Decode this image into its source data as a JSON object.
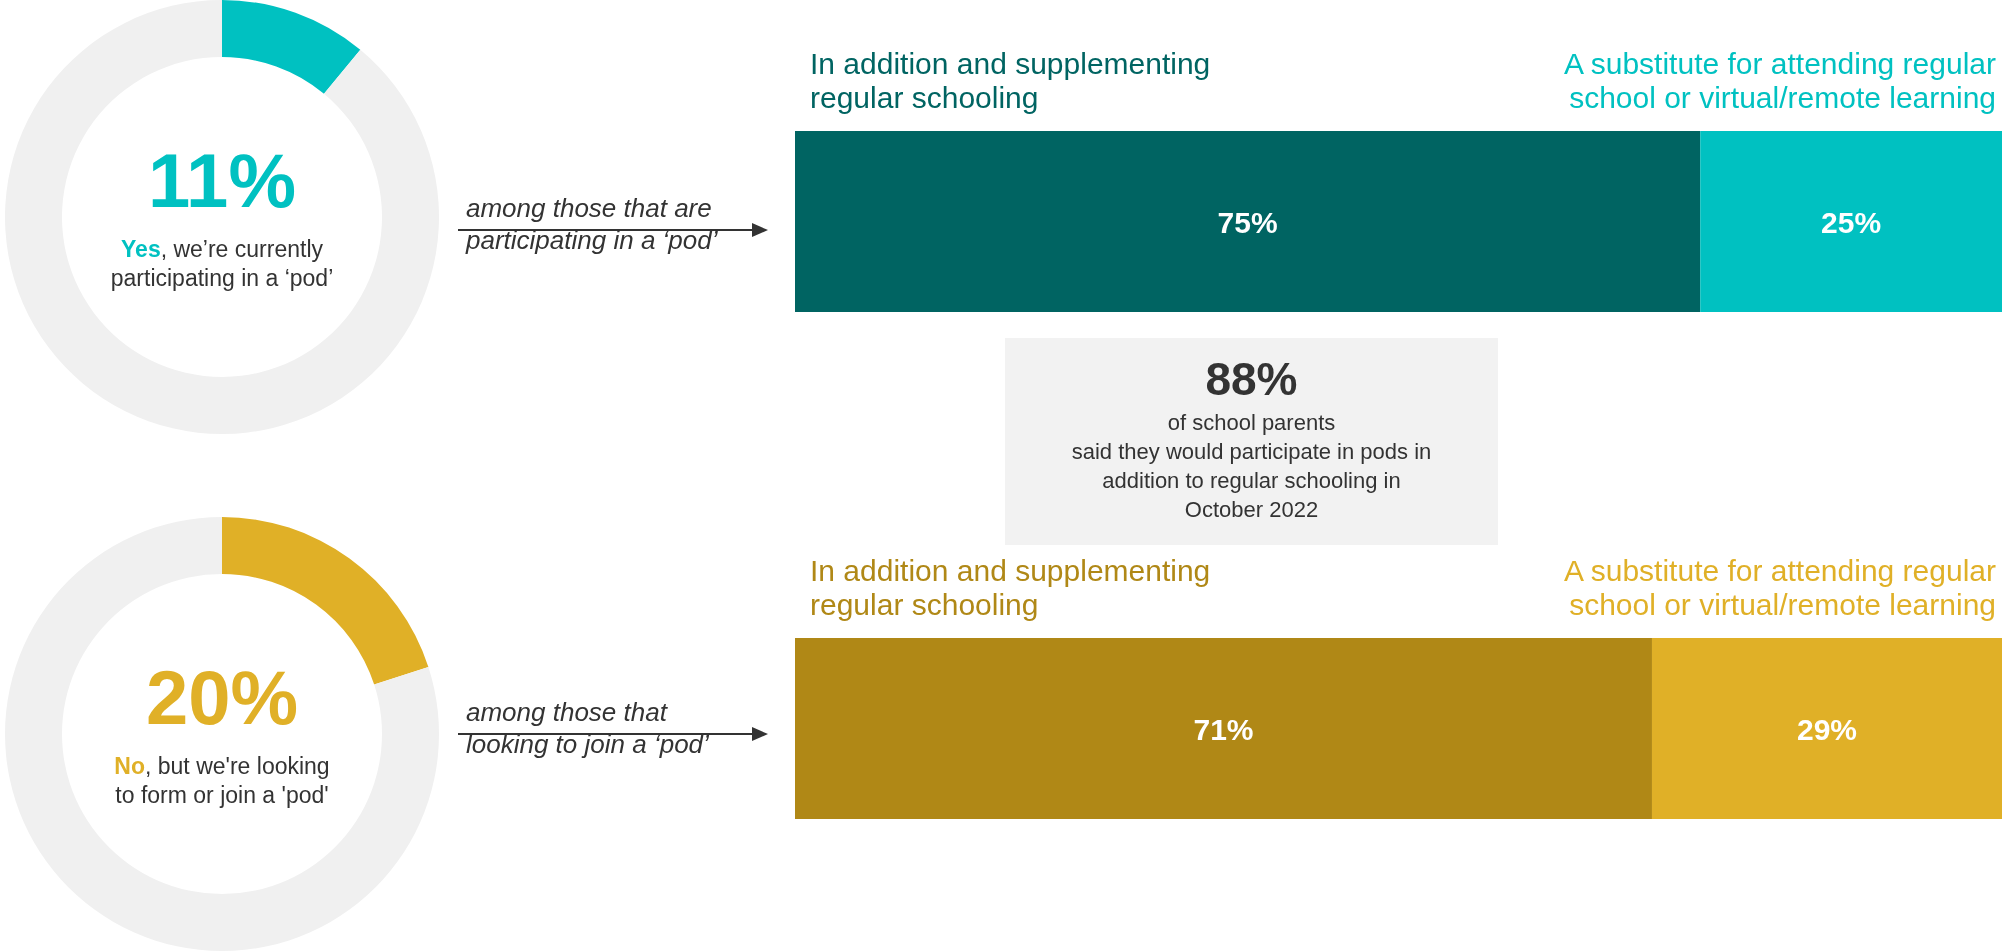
{
  "chart_data": [
    {
      "type": "donut",
      "categories": [
        "Yes, we’re currently\nparticipating in a ‘pod’",
        null
      ],
      "values": [
        11,
        89
      ],
      "colors": [
        "#00c1c1",
        "#f0f0f0"
      ],
      "value_labels": [
        "11%",
        null
      ]
    },
    {
      "type": "bar",
      "orientation": "horizontal",
      "stacked": true,
      "categories": [
        null
      ],
      "annotations": [
        "among those that are\nparticipating in a ‘pod’"
      ],
      "series": [
        {
          "name": "In addition and supplementing\nregular schooling",
          "color": "#006462",
          "values": [
            75
          ],
          "value_labels": [
            "75%"
          ]
        },
        {
          "name": "A substitute for attending regular\nschool or virtual/remote learning",
          "color": "#00c1c1",
          "values": [
            25
          ],
          "value_labels": [
            "25%"
          ]
        }
      ]
    },
    {
      "type": "other",
      "title": "88%",
      "annotations": [
        "of school parents\nsaid they would participate in pods in\naddition to regular schooling in\nOctober 2022"
      ]
    },
    {
      "type": "donut",
      "categories": [
        "No, but we're looking\nto form or join a 'pod'",
        null
      ],
      "values": [
        20,
        80
      ],
      "colors": [
        "#e0b027",
        "#f0f0f0"
      ],
      "value_labels": [
        "20%",
        null
      ]
    },
    {
      "type": "bar",
      "orientation": "horizontal",
      "stacked": true,
      "categories": [
        null
      ],
      "annotations": [
        "among those that\nlooking to join a ‘pod’"
      ],
      "series": [
        {
          "name": "In addition and supplementing\nregular schooling",
          "color": "#b08816",
          "values": [
            71
          ],
          "value_labels": [
            "71%"
          ]
        },
        {
          "name": "A substitute for attending regular\nschool or virtual/remote learning",
          "color": "#e0b027",
          "values": [
            29
          ],
          "value_labels": [
            "29%"
          ]
        }
      ]
    }
  ]
}
